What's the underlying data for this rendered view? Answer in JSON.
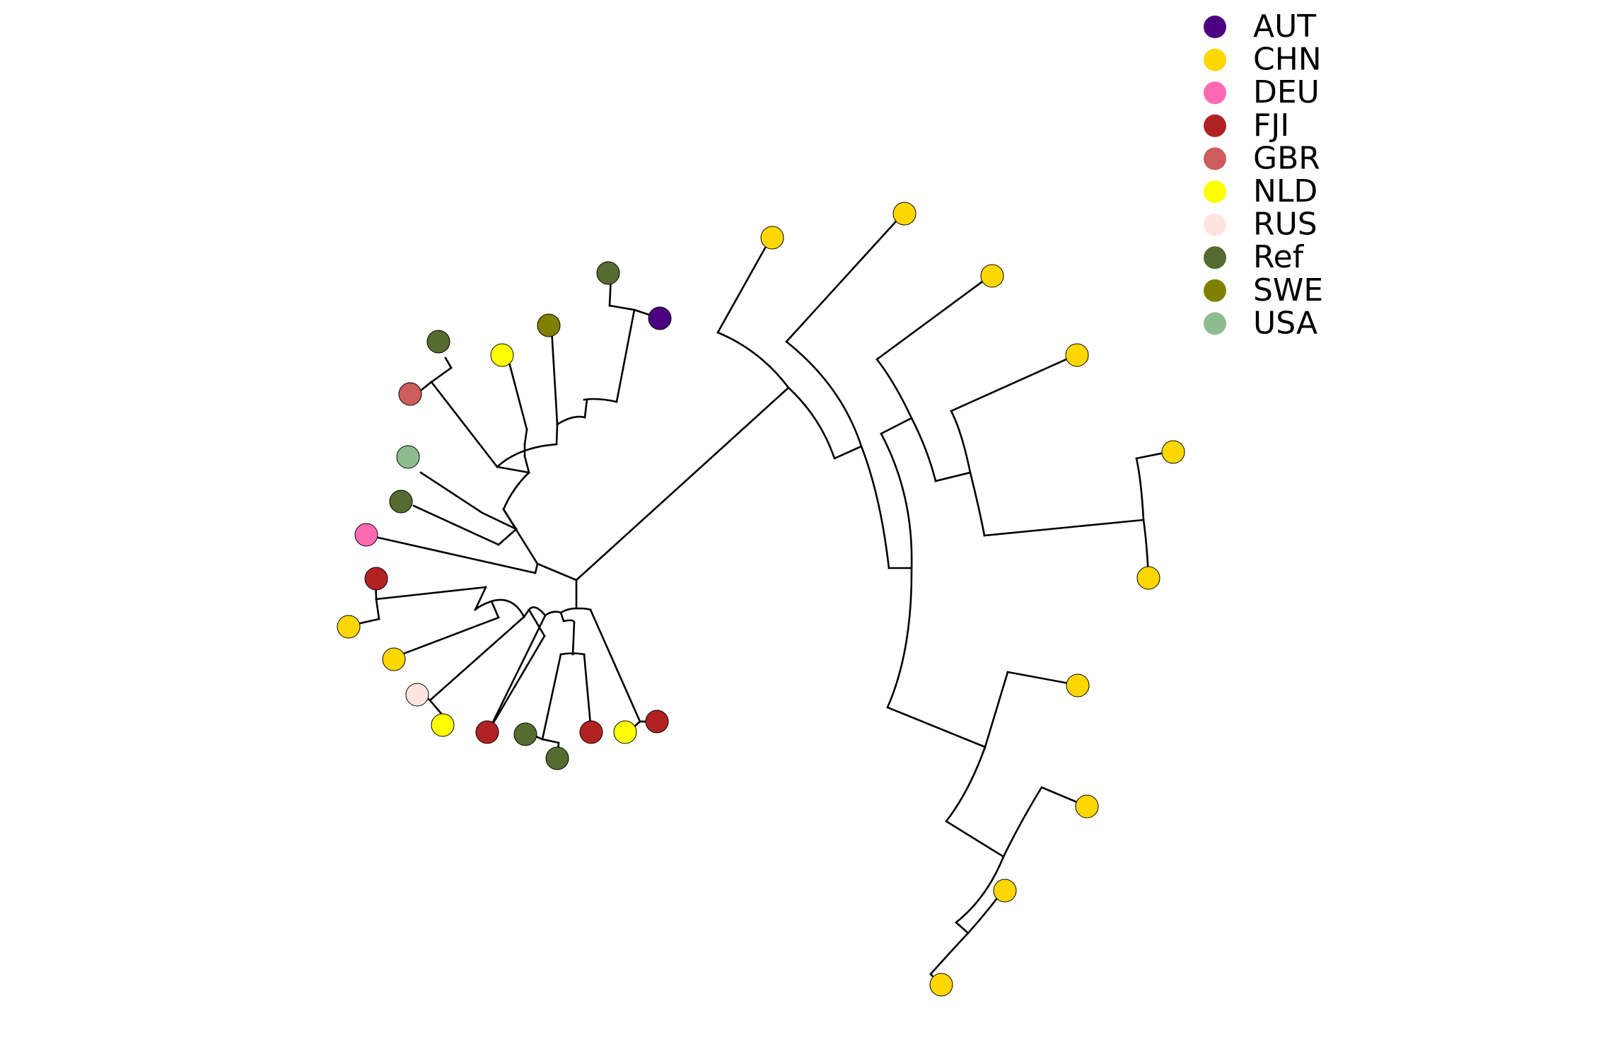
{
  "legend": {
    "items": [
      {
        "label": "AUT",
        "color": "#4B0082"
      },
      {
        "label": "CHN",
        "color": "#FFD700"
      },
      {
        "label": "DEU",
        "color": "#FF69B4"
      },
      {
        "label": "FJI",
        "color": "#B22222"
      },
      {
        "label": "GBR",
        "color": "#CD5C5C"
      },
      {
        "label": "NLD",
        "color": "#FFFF00"
      },
      {
        "label": "RUS",
        "color": "#FFE4E1"
      },
      {
        "label": "Ref",
        "color": "#556B2F"
      },
      {
        "label": "SWE",
        "color": "#808000"
      },
      {
        "label": "USA",
        "color": "#8FBC8F"
      }
    ]
  },
  "tree": {
    "layout": "circular",
    "tips": [
      {
        "group": "AUT"
      },
      {
        "group": "Ref"
      },
      {
        "group": "SWE"
      },
      {
        "group": "NLD"
      },
      {
        "group": "Ref"
      },
      {
        "group": "GBR"
      },
      {
        "group": "USA"
      },
      {
        "group": "Ref"
      },
      {
        "group": "DEU"
      },
      {
        "group": "FJI"
      },
      {
        "group": "CHN"
      },
      {
        "group": "CHN"
      },
      {
        "group": "RUS"
      },
      {
        "group": "NLD"
      },
      {
        "group": "FJI"
      },
      {
        "group": "Ref"
      },
      {
        "group": "Ref"
      },
      {
        "group": "FJI"
      },
      {
        "group": "NLD"
      },
      {
        "group": "FJI"
      },
      {
        "group": "CHN"
      },
      {
        "group": "CHN"
      },
      {
        "group": "CHN"
      },
      {
        "group": "CHN"
      },
      {
        "group": "CHN"
      },
      {
        "group": "CHN"
      },
      {
        "group": "CHN"
      },
      {
        "group": "CHN"
      },
      {
        "group": "CHN"
      },
      {
        "group": "CHN"
      }
    ]
  }
}
